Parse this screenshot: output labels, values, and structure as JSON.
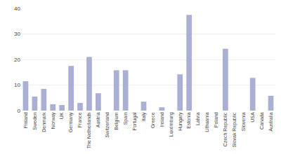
{
  "chart_data": {
    "type": "bar",
    "categories": [
      "Finland",
      "Sweden",
      "Denmark",
      "Norway",
      "UK",
      "Germany",
      "France",
      "The Netherlands",
      "Austria",
      "Switzerland",
      "Belgium",
      "Spain",
      "Portugal",
      "Italy",
      "Greece",
      "Ireland",
      "Luxemburg",
      "Hungary",
      "Estonia",
      "Latvia",
      "Lithuania",
      "Poland",
      "Czech Republic",
      "Slovak Republic",
      "Slovenia",
      "USA",
      "Canada",
      "Australia"
    ],
    "values": [
      11.5,
      5.5,
      8.5,
      2.5,
      2.2,
      17.5,
      3.0,
      21.0,
      6.8,
      0.0,
      15.8,
      15.8,
      0.0,
      3.5,
      0.0,
      1.3,
      0.0,
      14.2,
      37.5,
      0.0,
      0.0,
      0.0,
      24.2,
      0.0,
      0.0,
      12.8,
      0.0,
      5.8
    ],
    "color": "#aab0d4",
    "ylim": [
      0,
      40
    ],
    "yticks": [
      0,
      10,
      20,
      30,
      40
    ],
    "grid": true
  }
}
